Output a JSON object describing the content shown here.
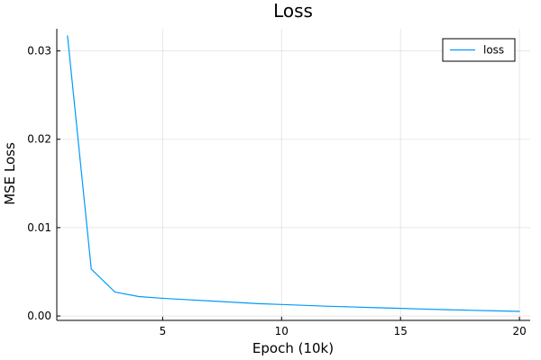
{
  "chart_data": {
    "type": "line",
    "title": "Loss",
    "xlabel": "Epoch (10k)",
    "ylabel": "MSE Loss",
    "xlim": [
      0.55,
      20.45
    ],
    "ylim": [
      -0.0005,
      0.0325
    ],
    "xticks": [
      5,
      10,
      15,
      20
    ],
    "xtick_labels": [
      "5",
      "10",
      "15",
      "20"
    ],
    "yticks": [
      0.0,
      0.01,
      0.02,
      0.03
    ],
    "ytick_labels": [
      "0.00",
      "0.01",
      "0.02",
      "0.03"
    ],
    "grid": true,
    "legend_position": "top-right",
    "series": [
      {
        "name": "loss",
        "color": "#009af9",
        "x": [
          1,
          2,
          3,
          4,
          5,
          6,
          7,
          8,
          9,
          10,
          11,
          12,
          13,
          14,
          15,
          16,
          17,
          18,
          19,
          20
        ],
        "y": [
          0.0317,
          0.0053,
          0.0027,
          0.0022,
          0.002,
          0.00185,
          0.0017,
          0.00155,
          0.0014,
          0.0013,
          0.0012,
          0.0011,
          0.00102,
          0.00094,
          0.00086,
          0.00078,
          0.00071,
          0.00064,
          0.00058,
          0.00052
        ]
      }
    ]
  }
}
